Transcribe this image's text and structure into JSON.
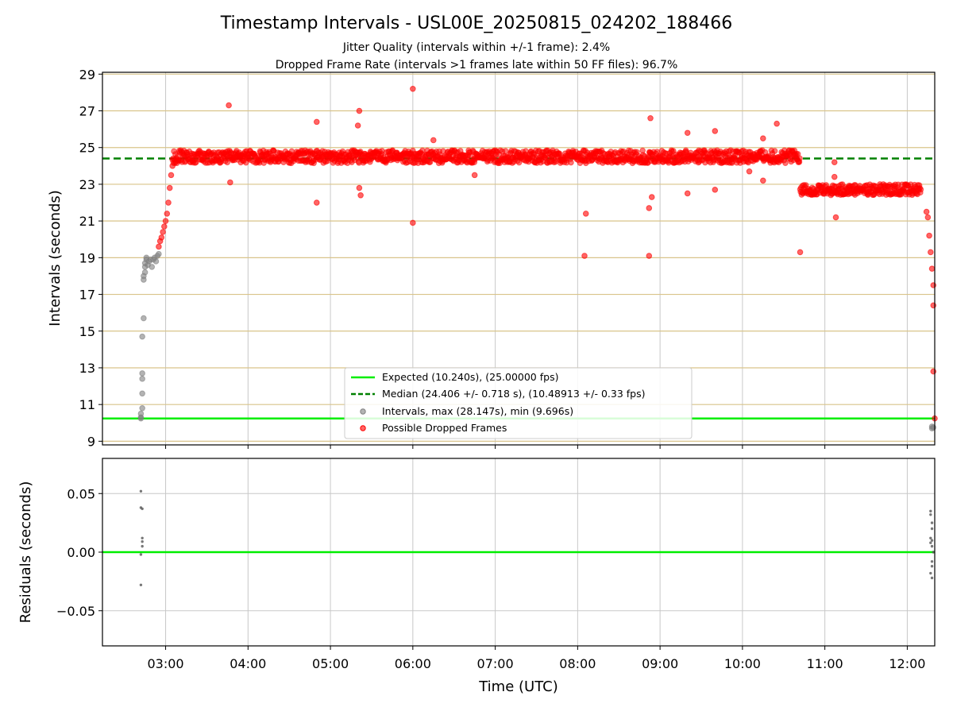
{
  "chart_data": [
    {
      "type": "scatter",
      "title": "Timestamp Intervals - USL00E_20250815_024202_188466",
      "subtitle_lines": [
        "Jitter Quality (intervals within +/-1 frame): 2.4%",
        "Dropped Frame Rate (intervals >1 frames late within 50 FF files): 96.7%"
      ],
      "xlabel": "",
      "ylabel": "Intervals (seconds)",
      "xlim": [
        "02:14",
        "12:20"
      ],
      "ylim": [
        8.8,
        29.1
      ],
      "x_ticks": [
        "03:00",
        "04:00",
        "05:00",
        "06:00",
        "07:00",
        "08:00",
        "09:00",
        "10:00",
        "11:00",
        "12:00"
      ],
      "y_ticks": [
        9,
        11,
        13,
        15,
        17,
        19,
        21,
        23,
        25,
        27,
        29
      ],
      "grid": true,
      "legend_position": "lower-center",
      "legend": [
        "Expected (10.240s), (25.00000 fps)",
        "Median (24.406 +/- 0.718 s), (10.48913 +/- 0.33 fps)",
        "Intervals, max (28.147s), min (9.696s)",
        "Possible Dropped Frames"
      ],
      "reference_lines": [
        {
          "name": "Expected",
          "y": 10.24,
          "style": "solid",
          "color": "#00ee00"
        },
        {
          "name": "Median",
          "y": 24.406,
          "style": "dashed",
          "color": "#008000"
        }
      ],
      "series": [
        {
          "name": "Intervals, max (28.147s), min (9.696s)",
          "color": "#808080",
          "points": [
            [
              "02:42",
              10.24
            ],
            [
              "02:42",
              10.3
            ],
            [
              "02:42",
              10.5
            ],
            [
              "02:43",
              10.8
            ],
            [
              "02:43",
              11.6
            ],
            [
              "02:43",
              12.4
            ],
            [
              "02:43",
              12.7
            ],
            [
              "02:43",
              14.7
            ],
            [
              "02:44",
              15.7
            ],
            [
              "02:44",
              17.8
            ],
            [
              "02:44",
              18.0
            ],
            [
              "02:45",
              18.2
            ],
            [
              "02:45",
              18.5
            ],
            [
              "02:45",
              18.7
            ],
            [
              "02:46",
              18.9
            ],
            [
              "02:46",
              19.0
            ],
            [
              "02:47",
              18.6
            ],
            [
              "02:48",
              18.8
            ],
            [
              "02:49",
              18.9
            ],
            [
              "02:50",
              18.5
            ],
            [
              "02:51",
              18.9
            ],
            [
              "02:52",
              19.0
            ],
            [
              "02:53",
              18.8
            ],
            [
              "02:54",
              19.1
            ],
            [
              "02:55",
              19.2
            ],
            [
              "12:18",
              9.7
            ],
            [
              "12:18",
              9.8
            ],
            [
              "12:19",
              9.75
            ]
          ]
        },
        {
          "name": "Possible Dropped Frames",
          "color": "#ff0000",
          "points": [
            [
              "02:55",
              19.6
            ],
            [
              "02:56",
              19.9
            ],
            [
              "02:57",
              20.1
            ],
            [
              "02:58",
              20.4
            ],
            [
              "02:59",
              20.7
            ],
            [
              "03:00",
              21.0
            ],
            [
              "03:01",
              21.4
            ],
            [
              "03:02",
              22.0
            ],
            [
              "03:03",
              22.8
            ],
            [
              "03:04",
              23.5
            ],
            [
              "03:05",
              24.0
            ],
            [
              "03:46",
              27.3
            ],
            [
              "03:47",
              23.1
            ],
            [
              "04:50",
              26.4
            ],
            [
              "04:50",
              22.0
            ],
            [
              "05:20",
              26.2
            ],
            [
              "05:21",
              27.0
            ],
            [
              "05:21",
              22.8
            ],
            [
              "05:22",
              22.4
            ],
            [
              "06:00",
              28.2
            ],
            [
              "06:00",
              20.9
            ],
            [
              "06:15",
              25.4
            ],
            [
              "06:45",
              23.5
            ],
            [
              "08:05",
              19.1
            ],
            [
              "08:06",
              21.4
            ],
            [
              "08:52",
              19.1
            ],
            [
              "08:52",
              21.7
            ],
            [
              "08:53",
              26.6
            ],
            [
              "08:54",
              22.3
            ],
            [
              "09:20",
              25.8
            ],
            [
              "09:20",
              22.5
            ],
            [
              "09:40",
              22.7
            ],
            [
              "09:40",
              25.9
            ],
            [
              "10:05",
              23.7
            ],
            [
              "10:15",
              25.5
            ],
            [
              "10:15",
              23.2
            ],
            [
              "10:25",
              26.3
            ],
            [
              "10:42",
              19.3
            ],
            [
              "11:07",
              24.2
            ],
            [
              "11:07",
              23.4
            ],
            [
              "11:08",
              21.2
            ],
            [
              "12:14",
              21.5
            ],
            [
              "12:15",
              21.2
            ],
            [
              "12:16",
              20.2
            ],
            [
              "12:17",
              19.3
            ],
            [
              "12:18",
              18.4
            ],
            [
              "12:19",
              17.5
            ],
            [
              "12:19",
              16.4
            ],
            [
              "12:19",
              12.8
            ],
            [
              "12:20",
              10.24
            ]
          ],
          "bands": [
            {
              "from": "03:05",
              "to": "10:42",
              "center": 24.5,
              "spread": 0.35
            },
            {
              "from": "10:42",
              "to": "12:10",
              "center": 22.7,
              "spread": 0.3
            }
          ]
        }
      ]
    },
    {
      "type": "scatter",
      "title": "",
      "xlabel": "Time (UTC)",
      "ylabel": "Residuals (seconds)",
      "xlim": [
        "02:14",
        "12:20"
      ],
      "ylim": [
        -0.08,
        0.08
      ],
      "x_ticks": [
        "03:00",
        "04:00",
        "05:00",
        "06:00",
        "07:00",
        "08:00",
        "09:00",
        "10:00",
        "11:00",
        "12:00"
      ],
      "y_ticks": [
        "0.05",
        "0.00",
        "−0.05"
      ],
      "grid": true,
      "reference_lines": [
        {
          "name": "Expected",
          "y": 0.0,
          "style": "solid",
          "color": "#00ee00"
        }
      ],
      "series": [
        {
          "name": "",
          "color": "#555555",
          "points": [
            [
              "02:42",
              0.052
            ],
            [
              "02:42",
              0.038
            ],
            [
              "02:43",
              0.037
            ],
            [
              "02:43",
              0.012
            ],
            [
              "02:43",
              0.009
            ],
            [
              "02:43",
              0.005
            ],
            [
              "02:42",
              -0.002
            ],
            [
              "02:42",
              -0.028
            ],
            [
              "12:17",
              0.035
            ],
            [
              "12:17",
              0.032
            ],
            [
              "12:18",
              0.025
            ],
            [
              "12:18",
              0.02
            ],
            [
              "12:17",
              0.012
            ],
            [
              "12:18",
              0.01
            ],
            [
              "12:17",
              0.008
            ],
            [
              "12:18",
              0.005
            ],
            [
              "12:19",
              0.0
            ],
            [
              "12:18",
              -0.008
            ],
            [
              "12:18",
              -0.012
            ],
            [
              "12:17",
              -0.018
            ],
            [
              "12:18",
              -0.022
            ]
          ]
        }
      ]
    }
  ]
}
